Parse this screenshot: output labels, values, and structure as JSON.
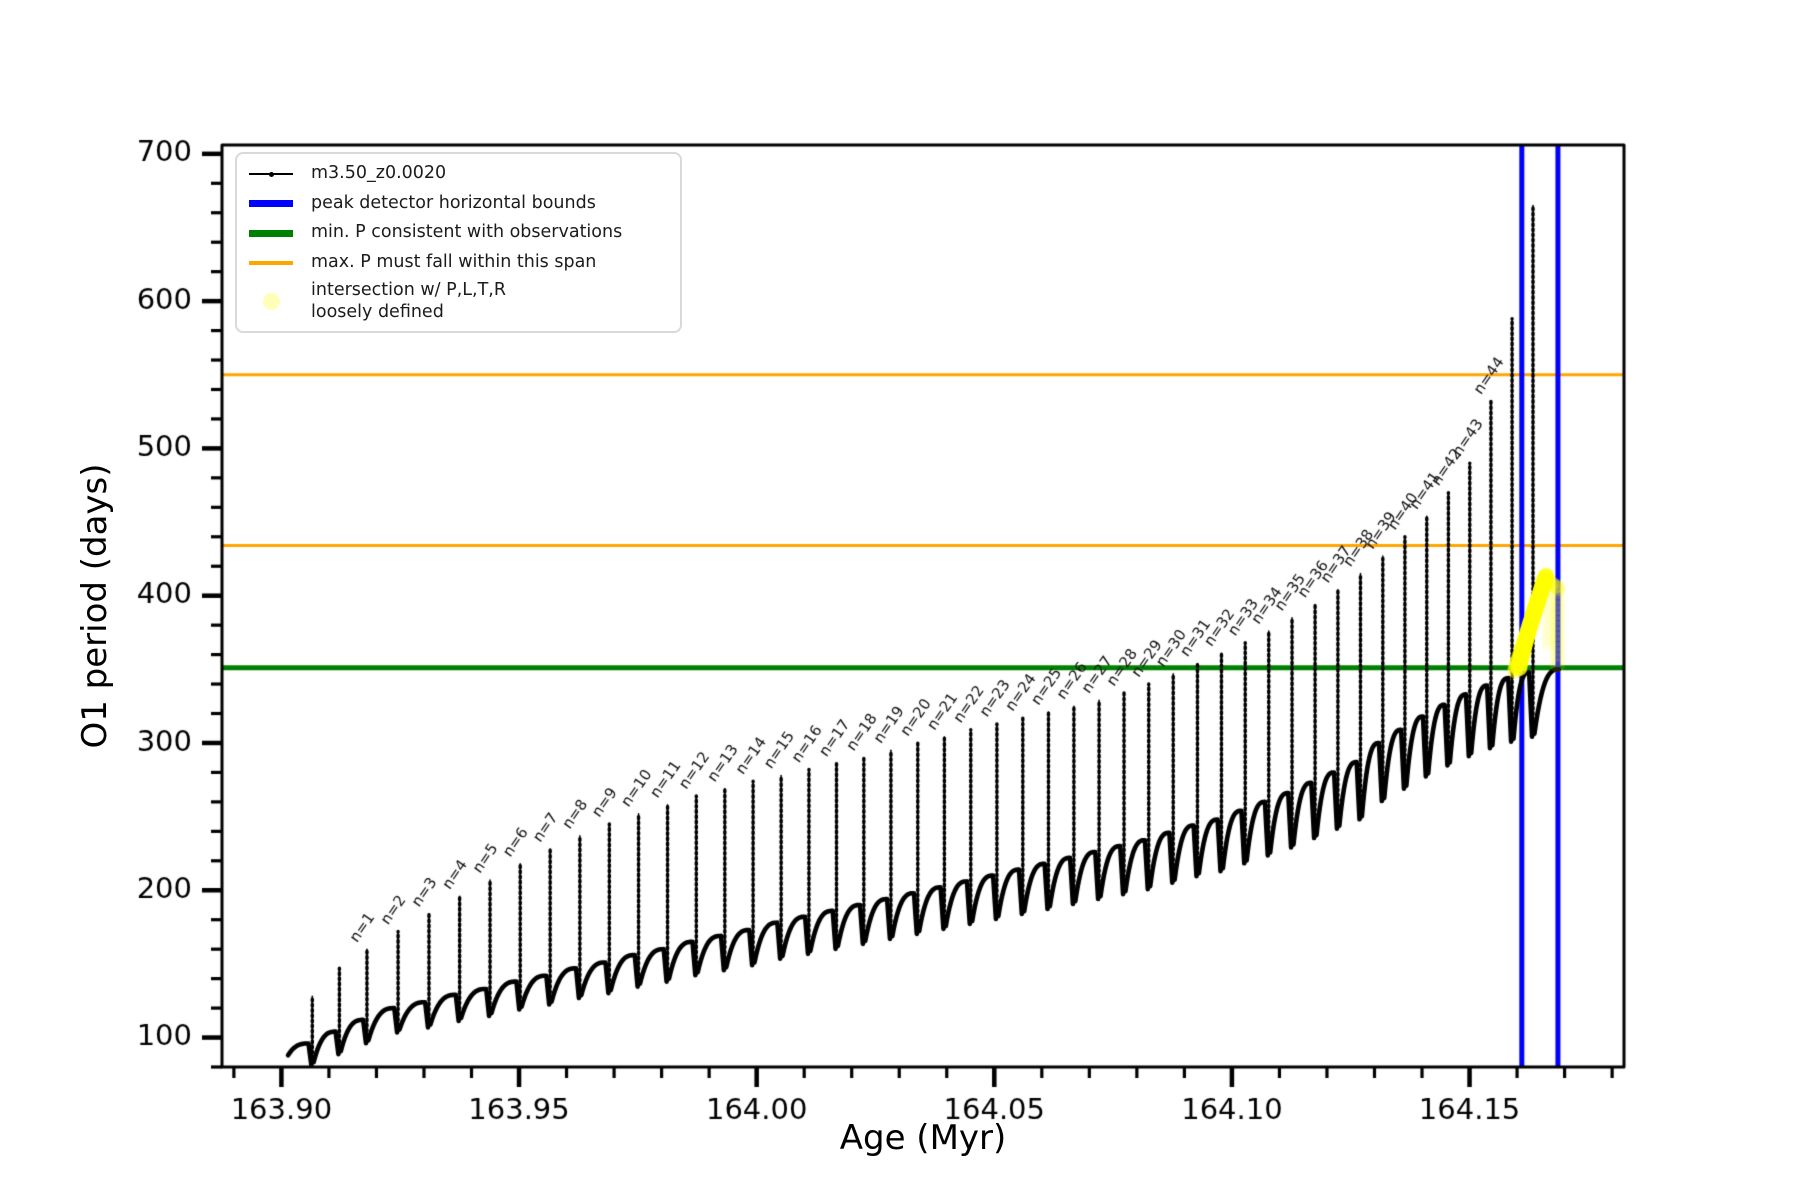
{
  "chart_data": {
    "type": "line",
    "xlabel": "Age (Myr)",
    "ylabel": "O1 period (days)",
    "xlim": [
      163.8875,
      164.1825
    ],
    "ylim": [
      80,
      706
    ],
    "grid": false,
    "xticks": {
      "values": [
        163.9,
        163.95,
        164.0,
        164.05,
        164.1,
        164.15
      ],
      "labels": [
        "163.90",
        "163.95",
        "164.00",
        "164.05",
        "164.10",
        "164.15"
      ],
      "minor_step": 0.01
    },
    "yticks": {
      "values": [
        100,
        200,
        300,
        400,
        500,
        600,
        700
      ],
      "labels": [
        "100",
        "200",
        "300",
        "400",
        "500",
        "600",
        "700"
      ],
      "minor_step": 20
    },
    "series": {
      "name": "m3.50_z0.0020",
      "color": "#000000",
      "start": {
        "age": 163.9014,
        "value": 88
      },
      "end_age": 164.169,
      "plateaus": [
        96,
        104,
        112,
        120,
        124,
        129,
        133,
        138,
        142,
        147,
        151,
        156,
        160,
        165,
        169,
        173,
        178,
        182,
        186,
        190,
        194,
        198,
        202,
        206,
        210,
        214,
        218,
        222,
        226,
        230,
        234,
        239,
        244,
        248,
        254,
        260,
        266,
        273,
        280,
        287,
        300,
        309,
        318,
        326,
        333,
        339,
        344,
        348,
        350,
        352
      ]
    },
    "pulses": [
      {
        "n": null,
        "age": 163.9065,
        "peak": 128
      },
      {
        "n": null,
        "age": 163.9122,
        "peak": 147
      },
      {
        "n": 1,
        "age": 163.918,
        "peak": 160
      },
      {
        "n": 2,
        "age": 163.92455,
        "peak": 172
      },
      {
        "n": 3,
        "age": 163.93105,
        "peak": 184
      },
      {
        "n": 4,
        "age": 163.9375,
        "peak": 196
      },
      {
        "n": 5,
        "age": 163.9439,
        "peak": 207
      },
      {
        "n": 6,
        "age": 163.95025,
        "peak": 218
      },
      {
        "n": 7,
        "age": 163.95655,
        "peak": 228
      },
      {
        "n": 8,
        "age": 163.9628,
        "peak": 237
      },
      {
        "n": 9,
        "age": 163.969,
        "peak": 245
      },
      {
        "n": 10,
        "age": 163.97515,
        "peak": 252
      },
      {
        "n": 11,
        "age": 163.98125,
        "peak": 258
      },
      {
        "n": 12,
        "age": 163.9873,
        "peak": 264
      },
      {
        "n": 13,
        "age": 163.9933,
        "peak": 269
      },
      {
        "n": 14,
        "age": 163.99925,
        "peak": 274
      },
      {
        "n": 15,
        "age": 164.00515,
        "peak": 278
      },
      {
        "n": 16,
        "age": 164.011,
        "peak": 282
      },
      {
        "n": 17,
        "age": 164.0168,
        "peak": 286
      },
      {
        "n": 18,
        "age": 164.02255,
        "peak": 290
      },
      {
        "n": 19,
        "age": 164.02825,
        "peak": 295
      },
      {
        "n": 20,
        "age": 164.0339,
        "peak": 300
      },
      {
        "n": 21,
        "age": 164.0395,
        "peak": 304
      },
      {
        "n": 22,
        "age": 164.04505,
        "peak": 309
      },
      {
        "n": 23,
        "age": 164.05055,
        "peak": 313
      },
      {
        "n": 24,
        "age": 164.056,
        "peak": 317
      },
      {
        "n": 25,
        "age": 164.0614,
        "peak": 321
      },
      {
        "n": 26,
        "age": 164.06675,
        "peak": 325
      },
      {
        "n": 27,
        "age": 164.07205,
        "peak": 329
      },
      {
        "n": 28,
        "age": 164.0773,
        "peak": 334
      },
      {
        "n": 29,
        "age": 164.0825,
        "peak": 340
      },
      {
        "n": 30,
        "age": 164.08765,
        "peak": 347
      },
      {
        "n": 31,
        "age": 164.09275,
        "peak": 354
      },
      {
        "n": 32,
        "age": 164.0978,
        "peak": 361
      },
      {
        "n": 33,
        "age": 164.1028,
        "peak": 368
      },
      {
        "n": 34,
        "age": 164.10775,
        "peak": 376
      },
      {
        "n": 35,
        "age": 164.11265,
        "peak": 385
      },
      {
        "n": 36,
        "age": 164.1175,
        "peak": 394
      },
      {
        "n": 37,
        "age": 164.1223,
        "peak": 404
      },
      {
        "n": 38,
        "age": 164.12705,
        "peak": 415
      },
      {
        "n": 39,
        "age": 164.13175,
        "peak": 427
      },
      {
        "n": 40,
        "age": 164.1364,
        "peak": 440
      },
      {
        "n": 41,
        "age": 164.141,
        "peak": 454
      },
      {
        "n": 42,
        "age": 164.14555,
        "peak": 470
      },
      {
        "n": 43,
        "age": 164.15005,
        "peak": 490
      },
      {
        "n": 44,
        "age": 164.1545,
        "peak": 532
      },
      {
        "n": null,
        "age": 164.15895,
        "peak": 588
      },
      {
        "n": null,
        "age": 164.16335,
        "peak": 665
      }
    ],
    "pulse_label_format": "n=",
    "hlines": [
      {
        "value": 550,
        "color": "#ffa500",
        "width": 3,
        "label": "max. P must fall within this span"
      },
      {
        "value": 434,
        "color": "#ffa500",
        "width": 3,
        "label": "max. P must fall within this span"
      },
      {
        "value": 351,
        "color": "#008000",
        "width": 5,
        "label": "min. P consistent with observations"
      }
    ],
    "vlines": [
      {
        "value": 164.161,
        "color": "#0000ff",
        "width": 5,
        "label": "peak detector horizontal bounds"
      },
      {
        "value": 164.1686,
        "color": "#0000ff",
        "width": 5,
        "label": "peak detector horizontal bounds"
      }
    ],
    "intersection_region": {
      "color": "#ffff00",
      "age_min": 164.1604,
      "apex_age": 164.1661,
      "age_max": 164.1686,
      "period_min": 350,
      "period_max": 413
    }
  },
  "legend": {
    "items": [
      {
        "label": "m3.50_z0.0020",
        "type": "line-dot",
        "color": "#000000"
      },
      {
        "label": "peak detector horizontal bounds",
        "type": "thick-line",
        "color": "#0000ff"
      },
      {
        "label": "min. P consistent with observations",
        "type": "thick-line",
        "color": "#008000"
      },
      {
        "label": "max. P must fall within this span",
        "type": "line",
        "color": "#ffa500"
      },
      {
        "label": "intersection w/ P,L,T,R\nloosely defined",
        "type": "circle",
        "color": "#ffff00",
        "opacity": 0.28
      }
    ]
  }
}
